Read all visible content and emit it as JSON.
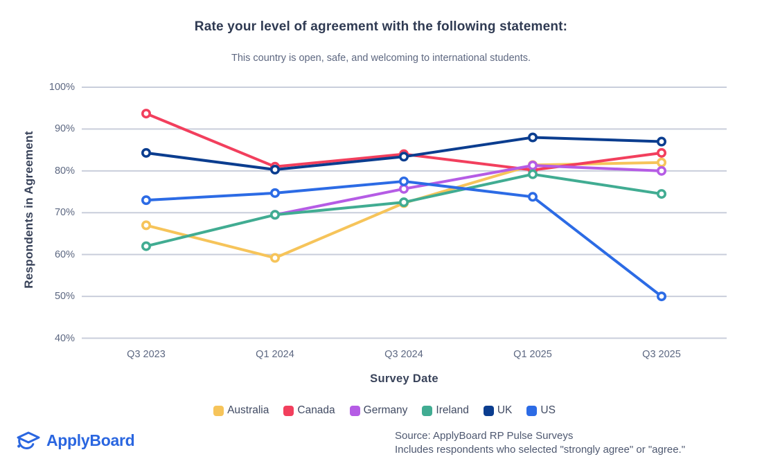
{
  "title": "Rate your level of agreement with the following statement:",
  "subtitle": "This country is open, safe, and welcoming to international students.",
  "chart_data": {
    "type": "line",
    "categories": [
      "Q3 2023",
      "Q1 2024",
      "Q3 2024",
      "Q1 2025",
      "Q3 2025"
    ],
    "series": [
      {
        "name": "Australia",
        "color": "#F6C45A",
        "values": [
          67,
          59.2,
          72.3,
          81.4,
          82
        ]
      },
      {
        "name": "Canada",
        "color": "#F23F5D",
        "values": [
          93.7,
          81,
          84,
          80.2,
          84.3
        ]
      },
      {
        "name": "Germany",
        "color": "#B55CE5",
        "values": [
          null,
          69.5,
          75.7,
          81.3,
          80
        ]
      },
      {
        "name": "Ireland",
        "color": "#41AC92",
        "values": [
          62,
          69.5,
          72.5,
          79.2,
          74.5
        ]
      },
      {
        "name": "UK",
        "color": "#0B3D8F",
        "values": [
          84.3,
          80.3,
          83.4,
          88,
          87
        ]
      },
      {
        "name": "US",
        "color": "#2C6BE5",
        "values": [
          73,
          74.7,
          77.5,
          73.8,
          50
        ]
      }
    ],
    "xlabel": "Survey Date",
    "ylabel": "Respondents in Agreement",
    "ylim": [
      40,
      100
    ],
    "yticks": [
      100,
      90,
      80,
      70,
      60,
      50,
      40
    ],
    "ytick_suffix": "%",
    "grid": "horizontal",
    "grid_color": "#C9CEDB",
    "legend_position": "bottom",
    "marker_style": "open-circle"
  },
  "footer": {
    "logo_text": "ApplyBoard",
    "logo_color": "#2A66E0",
    "source_line1": "Source: ApplyBoard RP Pulse Surveys",
    "source_line2": "Includes respondents who selected \"strongly agree\" or \"agree.\""
  }
}
